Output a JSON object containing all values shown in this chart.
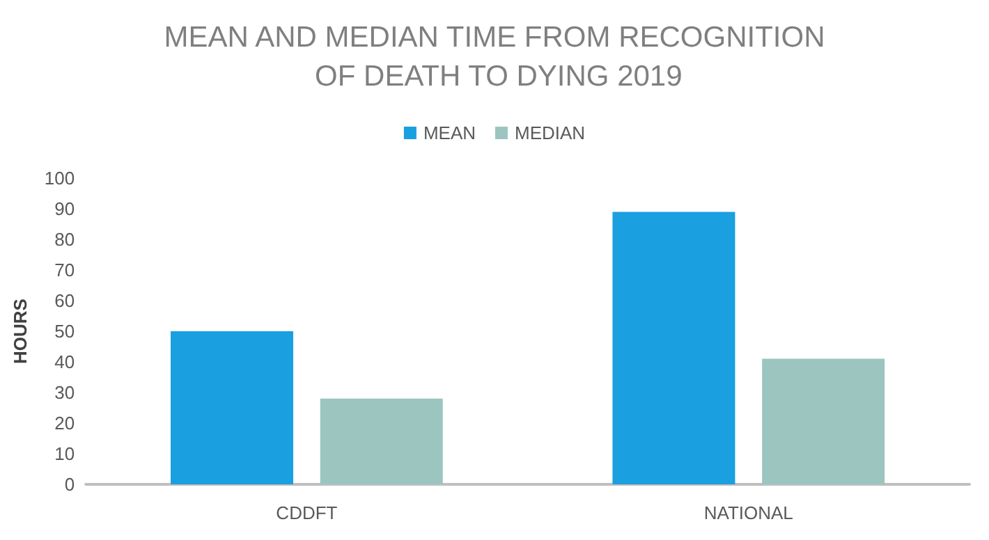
{
  "chart_data": {
    "type": "bar",
    "title": "MEAN AND MEDIAN TIME FROM RECOGNITION OF DEATH TO DYING 2019",
    "ylabel": "HOURS",
    "categories": [
      "CDDFT",
      "NATIONAL"
    ],
    "series": [
      {
        "name": "MEAN",
        "color": "#1a9fe0",
        "values": [
          50,
          89
        ]
      },
      {
        "name": "MEDIAN",
        "color": "#9cc5c0",
        "values": [
          28,
          41
        ]
      }
    ],
    "ylim": [
      0,
      100
    ],
    "yticks": [
      0,
      10,
      20,
      30,
      40,
      50,
      60,
      70,
      80,
      90,
      100
    ],
    "grid": false,
    "legend": "top"
  }
}
